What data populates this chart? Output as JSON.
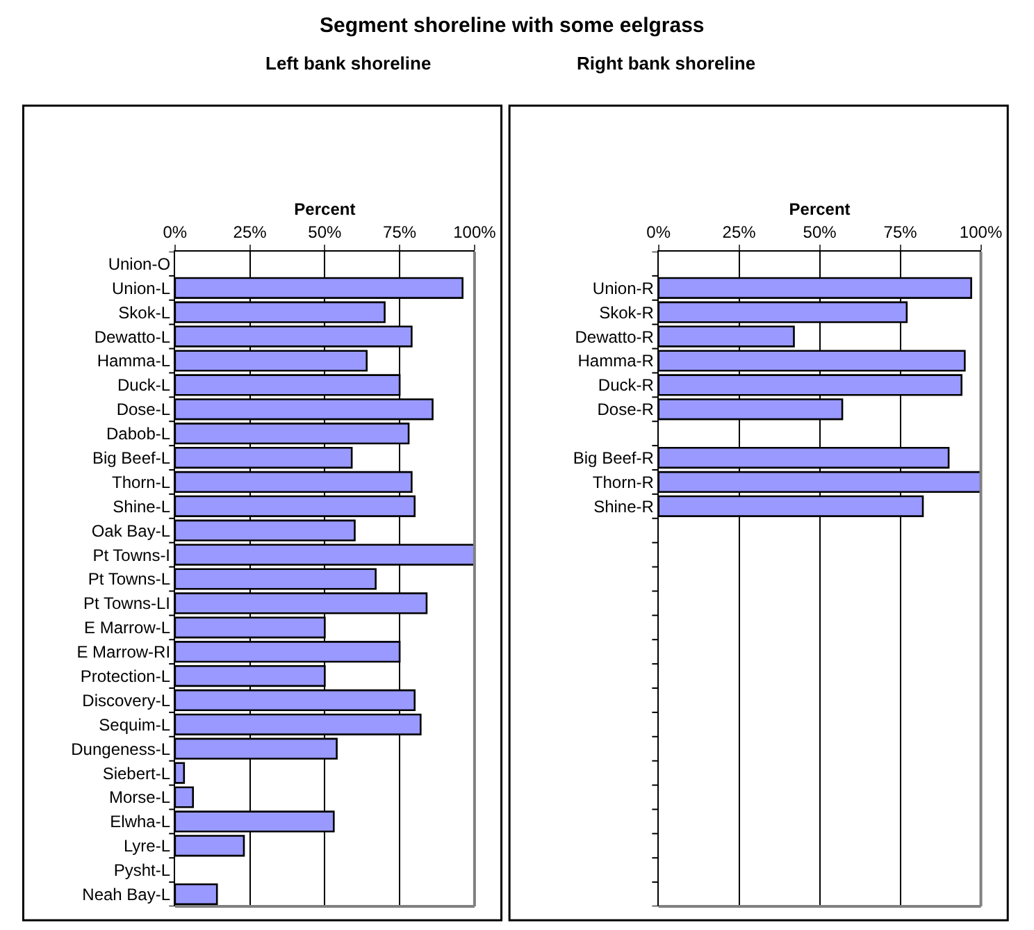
{
  "chart_data": [
    {
      "type": "bar",
      "orientation": "horizontal",
      "title": "Segment shoreline with some eelgrass",
      "subtitle": "Left bank shoreline",
      "xlabel": "Percent",
      "categories": [
        "Union-O",
        "Union-L",
        "Skok-L",
        "Dewatto-L",
        "Hamma-L",
        "Duck-L",
        "Dose-L",
        "Dabob-L",
        "Big Beef-L",
        "Thorn-L",
        "Shine-L",
        "Oak Bay-L",
        "Pt Towns-I",
        "Pt Towns-L",
        "Pt Towns-LI",
        "E Marrow-L",
        "E Marrow-RI",
        "Protection-L",
        "Discovery-L",
        "Sequim-L",
        "Dungeness-L",
        "Siebert-L",
        "Morse-L",
        "Elwha-L",
        "Lyre-L",
        "Pysht-L",
        "Neah Bay-L"
      ],
      "values": [
        null,
        96,
        70,
        79,
        64,
        75,
        86,
        78,
        59,
        79,
        80,
        60,
        100,
        67,
        84,
        50,
        75,
        50,
        80,
        82,
        54,
        3,
        6,
        53,
        23,
        null,
        14
      ],
      "color": "#9999ff",
      "xlim": [
        0,
        100
      ],
      "xticks": [
        {
          "value": 0,
          "label": "0%"
        },
        {
          "value": 25,
          "label": "25%"
        },
        {
          "value": 50,
          "label": "50%"
        },
        {
          "value": 75,
          "label": "75%"
        },
        {
          "value": 100,
          "label": "100%"
        }
      ],
      "grid": "x"
    },
    {
      "type": "bar",
      "orientation": "horizontal",
      "subtitle": "Right bank shoreline",
      "xlabel": "Percent",
      "categories": [
        null,
        "Union-R",
        "Skok-R",
        "Dewatto-R",
        "Hamma-R",
        "Duck-R",
        "Dose-R",
        null,
        "Big Beef-R",
        "Thorn-R",
        "Shine-R",
        null,
        null,
        null,
        null,
        null,
        null,
        null,
        null,
        null,
        null,
        null,
        null,
        null,
        null,
        null,
        null
      ],
      "values": [
        null,
        97,
        77,
        42,
        95,
        94,
        57,
        null,
        90,
        100,
        82,
        null,
        null,
        null,
        null,
        null,
        null,
        null,
        null,
        null,
        null,
        null,
        null,
        null,
        null,
        null,
        null
      ],
      "color": "#9999ff",
      "xlim": [
        0,
        100
      ],
      "xticks": [
        {
          "value": 0,
          "label": "0%"
        },
        {
          "value": 25,
          "label": "25%"
        },
        {
          "value": 50,
          "label": "50%"
        },
        {
          "value": 75,
          "label": "75%"
        },
        {
          "value": 100,
          "label": "100%"
        }
      ],
      "grid": "x"
    }
  ]
}
